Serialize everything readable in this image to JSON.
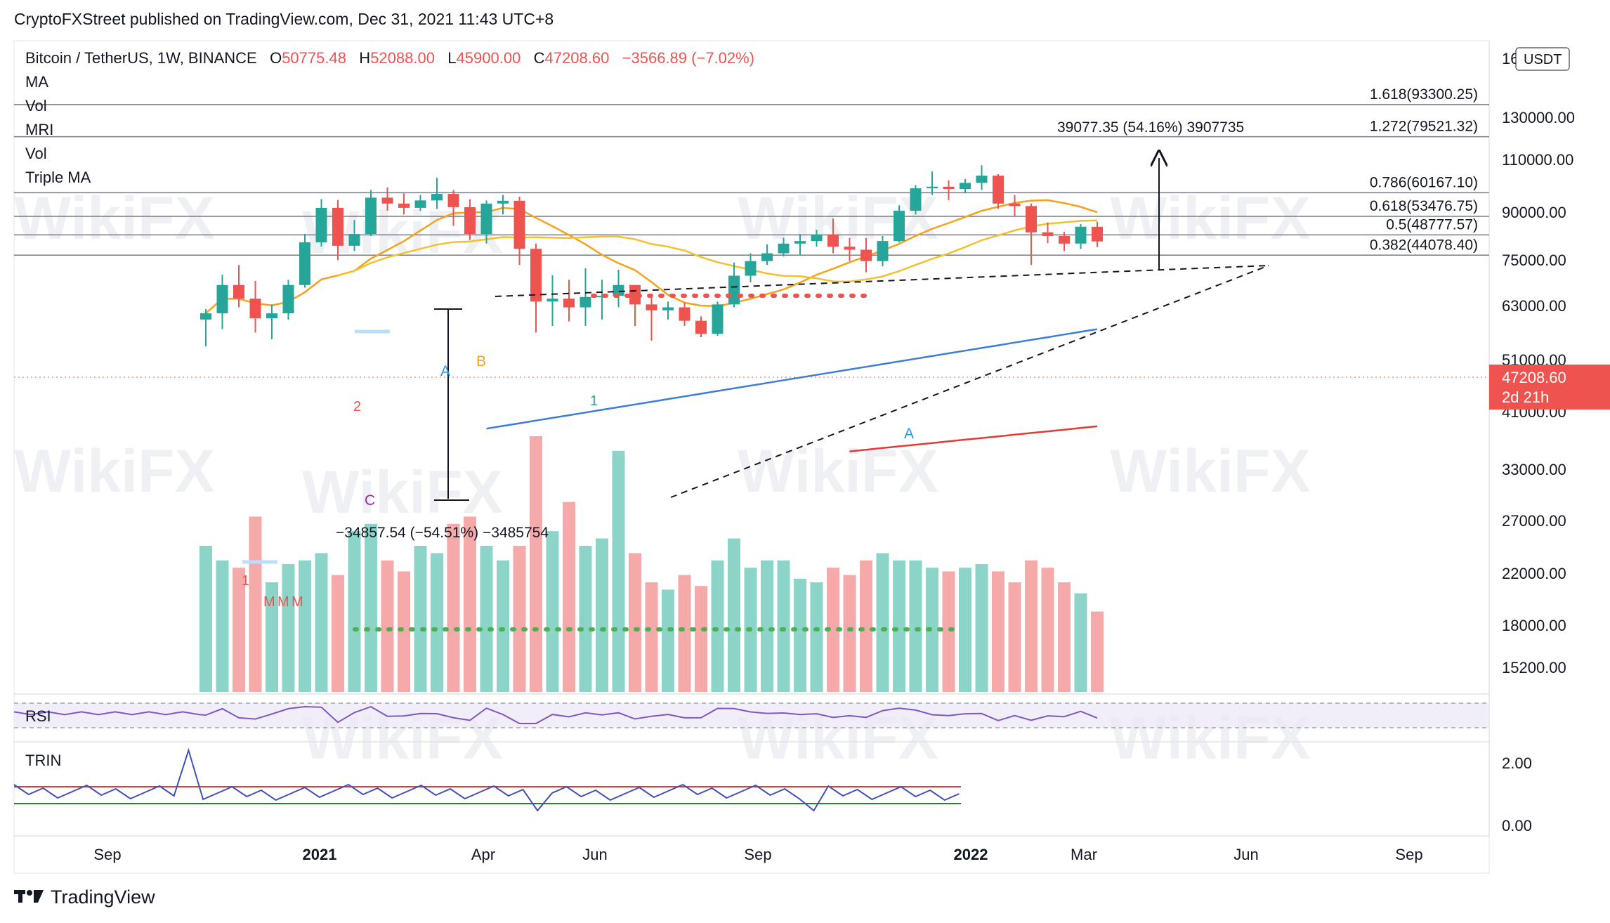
{
  "publisher_line": "CryptoFXStreet published on TradingView.com, Dec 31, 2021 11:43 UTC+8",
  "footer": {
    "brand": "TradingView",
    "logo": "tradingview-logo"
  },
  "watermark": "WikiFX",
  "legend": {
    "symbol": "Bitcoin / TetherUS, 1W, BINANCE",
    "o_label": "O",
    "o_val": "50775.48",
    "h_label": "H",
    "h_val": "52088.00",
    "l_label": "L",
    "l_val": "45900.00",
    "c_label": "C",
    "c_val": "47208.60",
    "change": "−3566.89 (−7.02%)",
    "indicators": [
      "MA",
      "Vol",
      "MRI",
      "Vol",
      "Triple MA"
    ]
  },
  "price_axis": {
    "currency": "USDT",
    "ticks": [
      "16",
      "130000.00",
      "110000.00",
      "90000.00",
      "75000.00",
      "63000.00",
      "51000.00",
      "41000.00",
      "33000.00",
      "27000.00",
      "22000.00",
      "18000.00",
      "15200.00"
    ],
    "last_price": "47208.60",
    "countdown": "2d 21h"
  },
  "time_axis": [
    "Sep",
    "2021",
    "Apr",
    "Jun",
    "Sep",
    "2022",
    "Mar",
    "Jun",
    "Sep"
  ],
  "fib_levels": [
    {
      "ratio": "1.618",
      "price": "93300.25",
      "text": "1.618(93300.25)"
    },
    {
      "ratio": "1.272",
      "price": "79521.32",
      "text": "1.272(79521.32)"
    },
    {
      "ratio": "0.786",
      "price": "60167.10",
      "text": "0.786(60167.10)"
    },
    {
      "ratio": "0.618",
      "price": "53476.75",
      "text": "0.618(53476.75)"
    },
    {
      "ratio": "0.5",
      "price": "48777.57",
      "text": "0.5(48777.57)"
    },
    {
      "ratio": "0.382",
      "price": "44078.40",
      "text": "0.382(44078.40)"
    }
  ],
  "annotations": {
    "up_measure": "39077.35 (54.16%) 3907735",
    "down_measure": "−34857.54 (−54.51%) −3485754",
    "wave_labels": [
      "A",
      "B",
      "C",
      "A"
    ],
    "td_labels": [
      "1",
      "2",
      "M",
      "M",
      "M",
      "1"
    ]
  },
  "rsi_panel": {
    "label": "RSI"
  },
  "trin_panel": {
    "label": "TRIN",
    "ticks": [
      "2.00",
      "0.00"
    ]
  },
  "colors": {
    "up": "#26a69a",
    "down": "#ef5350",
    "ma_orange": "#f7a21b",
    "ma_yellow": "#f2c12e",
    "ma_blue": "#3d7dd8",
    "ma_red": "#e53935",
    "rsi": "#7e57c2",
    "trin": "#3f51b5"
  },
  "chart_data": {
    "type": "candlestick",
    "timeframe": "1W",
    "price_scale": "log",
    "ylim": [
      14000,
      165000
    ],
    "candles": [
      {
        "o": 32000,
        "h": 33700,
        "l": 28000,
        "c": 33000
      },
      {
        "o": 33000,
        "h": 40000,
        "l": 30500,
        "c": 38000
      },
      {
        "o": 38000,
        "h": 42000,
        "l": 34000,
        "c": 35500
      },
      {
        "o": 35500,
        "h": 38800,
        "l": 30000,
        "c": 32200
      },
      {
        "o": 32200,
        "h": 34500,
        "l": 29000,
        "c": 33000
      },
      {
        "o": 33000,
        "h": 39000,
        "l": 32000,
        "c": 38000
      },
      {
        "o": 38000,
        "h": 49000,
        "l": 37500,
        "c": 47000
      },
      {
        "o": 47000,
        "h": 58300,
        "l": 46000,
        "c": 55800
      },
      {
        "o": 55800,
        "h": 58000,
        "l": 43000,
        "c": 46200
      },
      {
        "o": 46200,
        "h": 52500,
        "l": 45000,
        "c": 49000
      },
      {
        "o": 49000,
        "h": 61000,
        "l": 48500,
        "c": 58700
      },
      {
        "o": 58700,
        "h": 61800,
        "l": 55000,
        "c": 57000
      },
      {
        "o": 57000,
        "h": 60000,
        "l": 54000,
        "c": 55800
      },
      {
        "o": 55800,
        "h": 59500,
        "l": 55000,
        "c": 57900
      },
      {
        "o": 57900,
        "h": 64800,
        "l": 55500,
        "c": 59800
      },
      {
        "o": 59800,
        "h": 61000,
        "l": 51000,
        "c": 56000
      },
      {
        "o": 56000,
        "h": 58200,
        "l": 47500,
        "c": 49000
      },
      {
        "o": 49000,
        "h": 57900,
        "l": 46700,
        "c": 57000
      },
      {
        "o": 57000,
        "h": 59500,
        "l": 54000,
        "c": 57800
      },
      {
        "o": 57800,
        "h": 59000,
        "l": 42000,
        "c": 45500
      },
      {
        "o": 45500,
        "h": 46700,
        "l": 30000,
        "c": 35000
      },
      {
        "o": 35000,
        "h": 39900,
        "l": 31000,
        "c": 35500
      },
      {
        "o": 35500,
        "h": 39000,
        "l": 31700,
        "c": 34000
      },
      {
        "o": 34000,
        "h": 41300,
        "l": 31000,
        "c": 35800
      },
      {
        "o": 35800,
        "h": 39000,
        "l": 32000,
        "c": 36000
      },
      {
        "o": 36000,
        "h": 41000,
        "l": 34000,
        "c": 38000
      },
      {
        "o": 38000,
        "h": 38000,
        "l": 31000,
        "c": 34500
      },
      {
        "o": 34500,
        "h": 35900,
        "l": 28800,
        "c": 33500
      },
      {
        "o": 33500,
        "h": 35000,
        "l": 32000,
        "c": 34000
      },
      {
        "o": 34000,
        "h": 34800,
        "l": 31000,
        "c": 31800
      },
      {
        "o": 31800,
        "h": 32500,
        "l": 29300,
        "c": 29800
      },
      {
        "o": 29800,
        "h": 35000,
        "l": 29500,
        "c": 34500
      },
      {
        "o": 34500,
        "h": 42500,
        "l": 34000,
        "c": 39800
      },
      {
        "o": 39800,
        "h": 44500,
        "l": 38500,
        "c": 42800
      },
      {
        "o": 42800,
        "h": 46500,
        "l": 42000,
        "c": 44500
      },
      {
        "o": 44500,
        "h": 48100,
        "l": 43800,
        "c": 46700
      },
      {
        "o": 46700,
        "h": 49000,
        "l": 44000,
        "c": 47300
      },
      {
        "o": 47300,
        "h": 50000,
        "l": 46000,
        "c": 48800
      },
      {
        "o": 48800,
        "h": 52900,
        "l": 44500,
        "c": 46000
      },
      {
        "o": 46000,
        "h": 48000,
        "l": 42800,
        "c": 45300
      },
      {
        "o": 45300,
        "h": 48000,
        "l": 40500,
        "c": 42800
      },
      {
        "o": 42800,
        "h": 48500,
        "l": 41700,
        "c": 47300
      },
      {
        "o": 47300,
        "h": 56500,
        "l": 47000,
        "c": 55000
      },
      {
        "o": 55000,
        "h": 62500,
        "l": 54000,
        "c": 61500
      },
      {
        "o": 61500,
        "h": 66900,
        "l": 59500,
        "c": 62000
      },
      {
        "o": 62000,
        "h": 64000,
        "l": 58000,
        "c": 61300
      },
      {
        "o": 61300,
        "h": 64400,
        "l": 60000,
        "c": 63200
      },
      {
        "o": 63200,
        "h": 69000,
        "l": 61000,
        "c": 65500
      },
      {
        "o": 65500,
        "h": 66000,
        "l": 55600,
        "c": 57000
      },
      {
        "o": 57000,
        "h": 59500,
        "l": 53500,
        "c": 56300
      },
      {
        "o": 56300,
        "h": 57000,
        "l": 42000,
        "c": 49400
      },
      {
        "o": 49400,
        "h": 51900,
        "l": 46800,
        "c": 48500
      },
      {
        "o": 48500,
        "h": 49500,
        "l": 45000,
        "c": 46700
      },
      {
        "o": 46700,
        "h": 51500,
        "l": 45500,
        "c": 50800
      },
      {
        "o": 50775.48,
        "h": 52088,
        "l": 45900,
        "c": 47208.6
      }
    ],
    "volume": [
      40,
      36,
      34,
      48,
      30,
      35,
      36,
      38,
      32,
      44,
      46,
      36,
      33,
      40,
      38,
      46,
      48,
      40,
      36,
      40,
      70,
      44,
      52,
      40,
      42,
      66,
      38,
      30,
      28,
      32,
      29,
      36,
      42,
      34,
      36,
      36,
      31,
      30,
      34,
      32,
      36,
      38,
      36,
      36,
      34,
      33,
      34,
      35,
      33,
      30,
      36,
      34,
      30,
      27,
      22
    ]
  }
}
